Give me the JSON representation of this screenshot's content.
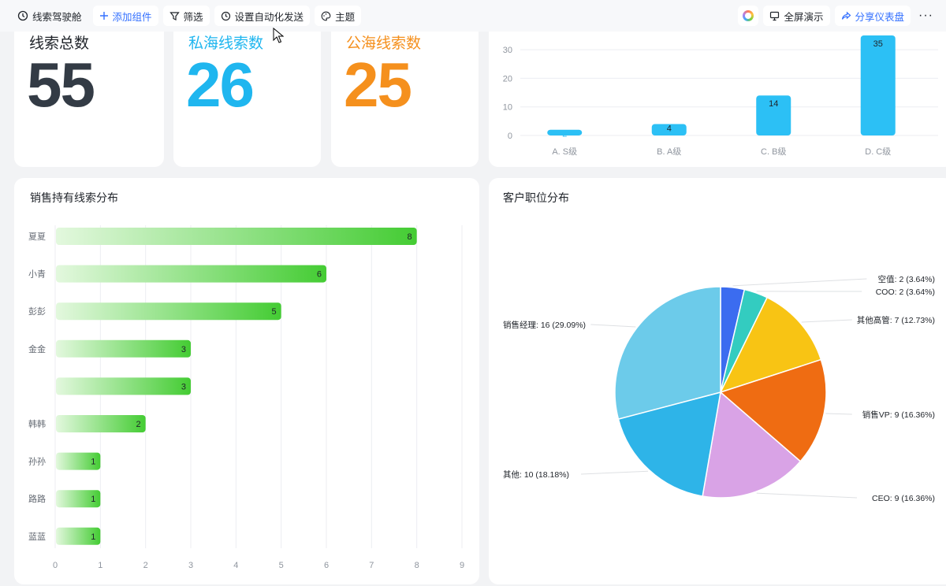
{
  "toolbar": {
    "title": "线索驾驶舱",
    "add_component": "添加组件",
    "filter": "筛选",
    "auto_send": "设置自动化发送",
    "theme": "主题",
    "fullscreen": "全屏演示",
    "share": "分享仪表盘",
    "more": "···"
  },
  "kpis": [
    {
      "title": "线索总数",
      "value": "55",
      "color": "#333b45"
    },
    {
      "title": "私海线索数",
      "value": "26",
      "color": "#1fb6ef"
    },
    {
      "title": "公海线索数",
      "value": "25",
      "color": "#f5901d"
    }
  ],
  "colors": {
    "accent": "#3370ff",
    "bar_blue": "#2cc0f5",
    "bar_green": "#44cc33"
  },
  "chart_data": [
    {
      "type": "bar",
      "categories": [
        "A. S级",
        "B. A级",
        "C. B级",
        "D. C级"
      ],
      "values": [
        2,
        4,
        14,
        35
      ],
      "yticks": [
        0,
        10,
        20,
        30
      ],
      "ylim": [
        0,
        35
      ],
      "title": ""
    },
    {
      "type": "bar",
      "orientation": "horizontal",
      "title": "销售持有线索分布",
      "categories": [
        "夏夏",
        "小青",
        "彭彭",
        "金金",
        "",
        "韩韩",
        "孙孙",
        "路路",
        "蓝蓝"
      ],
      "values": [
        8,
        6,
        5,
        3,
        3,
        2,
        1,
        1,
        1
      ],
      "xticks": [
        0,
        1,
        2,
        3,
        4,
        5,
        6,
        7,
        8,
        9
      ],
      "xlim": [
        0,
        9
      ]
    },
    {
      "type": "pie",
      "title": "客户职位分布",
      "slices": [
        {
          "label": "空值: 2 (3.64%)",
          "value": 2,
          "color": "#3b6cf0"
        },
        {
          "label": "COO: 2 (3.64%)",
          "value": 2,
          "color": "#33ccc0"
        },
        {
          "label": "其他高管: 7 (12.73%)",
          "value": 7,
          "color": "#f8c414"
        },
        {
          "label": "销售VP: 9 (16.36%)",
          "value": 9,
          "color": "#ef6c12"
        },
        {
          "label": "CEO: 9 (16.36%)",
          "value": 9,
          "color": "#d9a3e6"
        },
        {
          "label": "其他: 10 (18.18%)",
          "value": 10,
          "color": "#2eb4e8"
        },
        {
          "label": "销售经理: 16 (29.09%)",
          "value": 16,
          "color": "#6ccbea"
        }
      ]
    }
  ]
}
